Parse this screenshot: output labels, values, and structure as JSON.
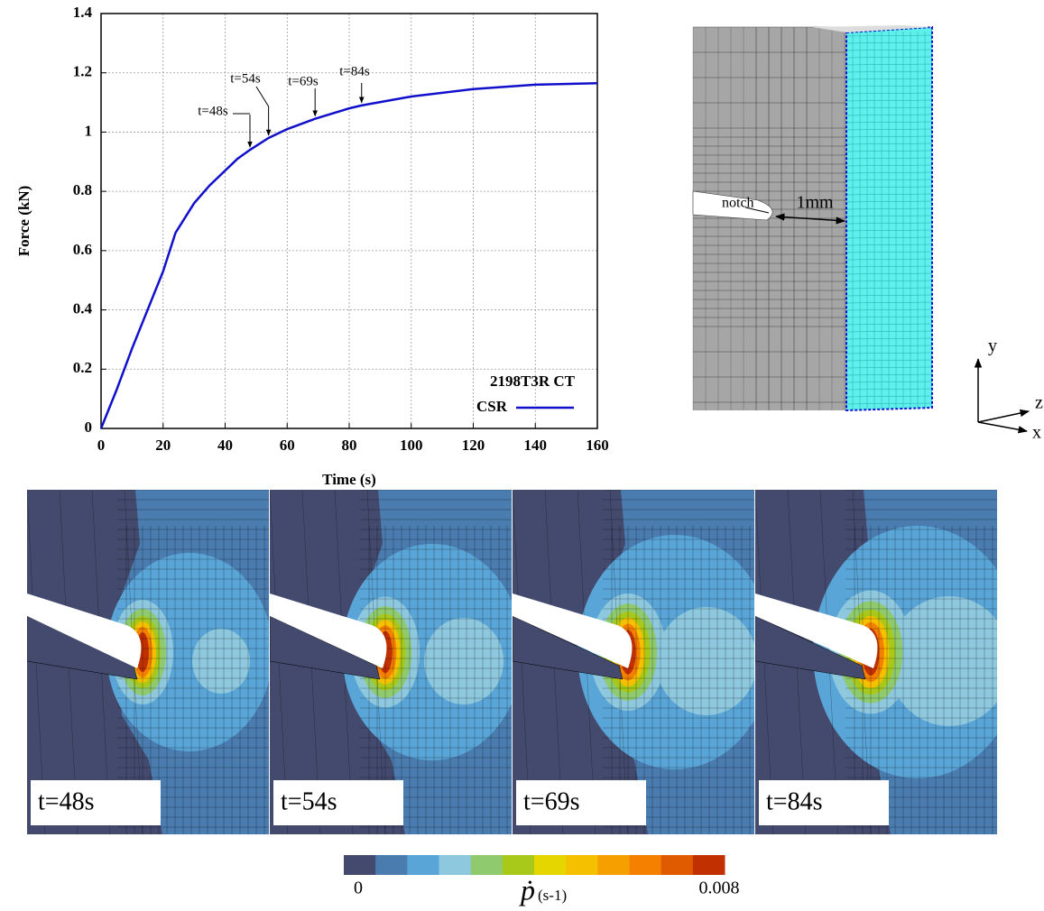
{
  "chart_data": {
    "type": "line",
    "x_label": "Time (s)",
    "y_label": "Force (kN)",
    "x": [
      0,
      5,
      10,
      15,
      20,
      24,
      27,
      30,
      35,
      40,
      44,
      48,
      54,
      60,
      69,
      80,
      84,
      100,
      120,
      140,
      160
    ],
    "series": [
      {
        "name": "CSR",
        "color": "#1010cc",
        "values": [
          0,
          0.13,
          0.27,
          0.4,
          0.53,
          0.66,
          0.71,
          0.76,
          0.82,
          0.87,
          0.91,
          0.94,
          0.98,
          1.01,
          1.045,
          1.08,
          1.09,
          1.12,
          1.145,
          1.16,
          1.165
        ]
      }
    ],
    "legend_title": "2198T3R CT",
    "legend": "lower right",
    "grid": true,
    "xlim": [
      0,
      160
    ],
    "xticks": [
      0,
      20,
      40,
      60,
      80,
      100,
      120,
      140,
      160
    ],
    "ylim": [
      0,
      1.4
    ],
    "yticks": [
      0,
      0.2,
      0.4,
      0.6,
      0.8,
      1,
      1.2,
      1.4
    ],
    "annotations": [
      {
        "text": "t=48s",
        "x": 48
      },
      {
        "text": "t=54s",
        "x": 54
      },
      {
        "text": "t=69s",
        "x": 69
      },
      {
        "text": "t=84s",
        "x": 84
      }
    ]
  },
  "mesh": {
    "notch": "notch",
    "distance": "1mm",
    "axes": [
      "y",
      "z",
      "x"
    ]
  },
  "snapshots": [
    "t=48s",
    "t=54s",
    "t=69s",
    "t=84s"
  ],
  "colorbar": {
    "min_label": "0",
    "max_label": "0.008",
    "label": "ṗ",
    "unit": "(s-1)",
    "colors": [
      "#434a6e",
      "#4a7cb0",
      "#5aa5d8",
      "#8ec8de",
      "#8fcb6e",
      "#a8c81a",
      "#e6d600",
      "#f5c000",
      "#f5a000",
      "#f58000",
      "#e05a00",
      "#c03000"
    ]
  }
}
